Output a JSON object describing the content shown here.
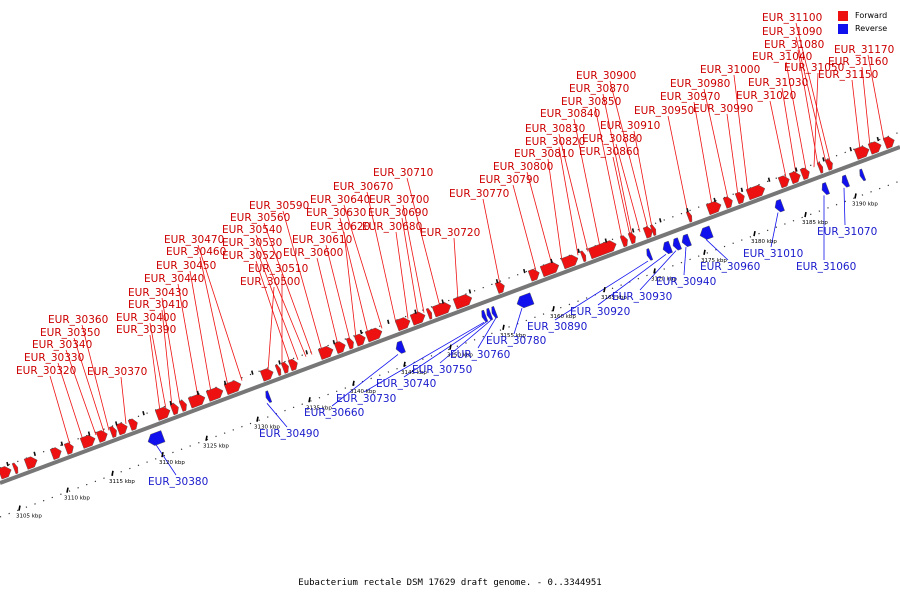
{
  "caption": "Eubacterium rectale DSM 17629 draft genome. - 0..3344951",
  "legend": [
    {
      "key": "forward",
      "label": "Forward",
      "color": "#ee1111"
    },
    {
      "key": "reverse",
      "label": "Reverse",
      "color": "#1111ee"
    }
  ],
  "colors": {
    "forward": "#ee1111",
    "reverse": "#1111ee",
    "forward_label": "#cc0000",
    "reverse_label": "#1a1acc",
    "backbone": "#777777"
  },
  "ticks": [
    "3105 kbp",
    "3110 kbp",
    "3115 kbp",
    "3120 kbp",
    "3125 kbp",
    "3130 kbp",
    "3135 kbp",
    "3140 kbp",
    "3145 kbp",
    "3150 kbp",
    "3155 kbp",
    "3160 kbp",
    "3165 kbp",
    "3170 kbp",
    "3175 kbp",
    "3180 kbp",
    "3185 kbp",
    "3190 kbp"
  ],
  "forward_labels": [
    "EUR_30320",
    "EUR_30330",
    "EUR_30340",
    "EUR_30350",
    "EUR_30360",
    "EUR_30370",
    "EUR_30390",
    "EUR_30400",
    "EUR_30410",
    "EUR_30430",
    "EUR_30440",
    "EUR_30450",
    "EUR_30460",
    "EUR_30470",
    "EUR_30500",
    "EUR_30510",
    "EUR_30520",
    "EUR_30530",
    "EUR_30540",
    "EUR_30560",
    "EUR_30590",
    "EUR_30600",
    "EUR_30610",
    "EUR_30620",
    "EUR_30630",
    "EUR_30640",
    "EUR_30670",
    "EUR_30680",
    "EUR_30690",
    "EUR_30700",
    "EUR_30710",
    "EUR_30720",
    "EUR_30770",
    "EUR_30790",
    "EUR_30800",
    "EUR_30810",
    "EUR_30820",
    "EUR_30830",
    "EUR_30840",
    "EUR_30850",
    "EUR_30860",
    "EUR_30870",
    "EUR_30880",
    "EUR_30900",
    "EUR_30910",
    "EUR_30950",
    "EUR_30970",
    "EUR_30980",
    "EUR_30990",
    "EUR_31000",
    "EUR_31020",
    "EUR_31030",
    "EUR_31040",
    "EUR_31050",
    "EUR_31080",
    "EUR_31090",
    "EUR_31100",
    "EUR_31150",
    "EUR_31160",
    "EUR_31170"
  ],
  "reverse_labels": [
    "EUR_30380",
    "EUR_30490",
    "EUR_30660",
    "EUR_30730",
    "EUR_30740",
    "EUR_30750",
    "EUR_30760",
    "EUR_30780",
    "EUR_30890",
    "EUR_30920",
    "EUR_30930",
    "EUR_30940",
    "EUR_30960",
    "EUR_31010",
    "EUR_31060",
    "EUR_31070"
  ]
}
